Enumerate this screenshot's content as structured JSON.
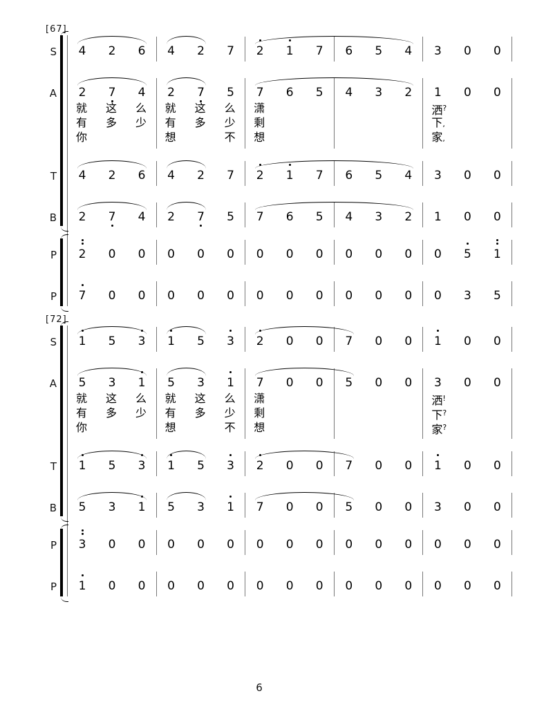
{
  "page_number": "6",
  "systems": [
    {
      "label": "[67]",
      "staves": [
        {
          "label": "S",
          "has_lyrics": false,
          "notes": [
            "4",
            "2",
            "6",
            "4",
            "2",
            "7",
            "2'",
            "1'",
            "7",
            "6",
            "5",
            "4",
            "3",
            "0",
            "0"
          ],
          "slurs": [
            [
              0,
              2
            ],
            [
              3,
              4
            ],
            [
              6,
              11
            ]
          ]
        },
        {
          "label": "A",
          "has_lyrics": true,
          "notes": [
            "2",
            "7,",
            "4",
            "2",
            "7,",
            "5",
            "7",
            "6",
            "5",
            "4",
            "3",
            "2",
            "1",
            "0",
            "0"
          ],
          "slurs": [
            [
              0,
              2
            ],
            [
              3,
              4
            ],
            [
              6,
              11
            ]
          ]
        },
        {
          "label": "T",
          "has_lyrics": false,
          "notes": [
            "4",
            "2",
            "6",
            "4",
            "2",
            "7",
            "2'",
            "1'",
            "7",
            "6",
            "5",
            "4",
            "3",
            "0",
            "0"
          ],
          "slurs": [
            [
              0,
              2
            ],
            [
              3,
              4
            ],
            [
              6,
              11
            ]
          ]
        },
        {
          "label": "B",
          "has_lyrics": false,
          "notes": [
            "2",
            "7,",
            "4",
            "2",
            "7,",
            "5",
            "7",
            "6",
            "5",
            "4",
            "3",
            "2",
            "1",
            "0",
            "0"
          ],
          "slurs": [
            [
              0,
              2
            ],
            [
              3,
              4
            ],
            [
              6,
              11
            ]
          ]
        },
        {
          "label": "P",
          "has_lyrics": false,
          "notes": [
            "2''",
            "0",
            "0",
            "0",
            "0",
            "0",
            "0",
            "0",
            "0",
            "0",
            "0",
            "0",
            "0",
            "5'",
            "1''"
          ],
          "slurs": []
        },
        {
          "label": "P",
          "has_lyrics": false,
          "notes": [
            "7'",
            "0",
            "0",
            "0",
            "0",
            "0",
            "0",
            "0",
            "0",
            "0",
            "0",
            "0",
            "0",
            "3",
            "5"
          ],
          "slurs": []
        }
      ],
      "lyric_lines": [
        [
          "就",
          "这",
          "么",
          "就",
          "这",
          "么",
          "潇",
          "",
          "",
          "",
          "",
          "",
          "洒?",
          "",
          ""
        ],
        [
          "有",
          "多",
          "少",
          "有",
          "多",
          "少",
          "剩",
          "",
          "",
          "",
          "",
          "",
          "下,",
          "",
          ""
        ],
        [
          "你",
          "",
          "",
          "想",
          "",
          "不",
          "想",
          "",
          "",
          "",
          "",
          "",
          "家,",
          "",
          ""
        ]
      ]
    },
    {
      "label": "[72]",
      "staves": [
        {
          "label": "S",
          "has_lyrics": false,
          "notes": [
            "1'",
            "5",
            "3'",
            "1'",
            "5",
            "3'",
            "2'",
            "0",
            "0",
            "7",
            "0",
            "0",
            "1'",
            "0",
            "0"
          ],
          "slurs": [
            [
              0,
              2
            ],
            [
              3,
              4
            ],
            [
              6,
              9
            ]
          ]
        },
        {
          "label": "A",
          "has_lyrics": true,
          "notes": [
            "5",
            "3",
            "1'",
            "5",
            "3",
            "1'",
            "7",
            "0",
            "0",
            "5",
            "0",
            "0",
            "3",
            "0",
            "0"
          ],
          "slurs": [
            [
              0,
              2
            ],
            [
              3,
              4
            ],
            [
              6,
              9
            ]
          ]
        },
        {
          "label": "T",
          "has_lyrics": false,
          "notes": [
            "1'",
            "5",
            "3'",
            "1'",
            "5",
            "3'",
            "2'",
            "0",
            "0",
            "7",
            "0",
            "0",
            "1'",
            "0",
            "0"
          ],
          "slurs": [
            [
              0,
              2
            ],
            [
              3,
              4
            ],
            [
              6,
              9
            ]
          ]
        },
        {
          "label": "B",
          "has_lyrics": false,
          "notes": [
            "5",
            "3",
            "1'",
            "5",
            "3",
            "1'",
            "7",
            "0",
            "0",
            "5",
            "0",
            "0",
            "3",
            "0",
            "0"
          ],
          "slurs": [
            [
              0,
              2
            ],
            [
              3,
              4
            ],
            [
              6,
              9
            ]
          ]
        },
        {
          "label": "P",
          "has_lyrics": false,
          "notes": [
            "3''",
            "0",
            "0",
            "0",
            "0",
            "0",
            "0",
            "0",
            "0",
            "0",
            "0",
            "0",
            "0",
            "0",
            "0"
          ],
          "slurs": []
        },
        {
          "label": "P",
          "has_lyrics": false,
          "notes": [
            "1'",
            "0",
            "0",
            "0",
            "0",
            "0",
            "0",
            "0",
            "0",
            "0",
            "0",
            "0",
            "0",
            "0",
            "0"
          ],
          "slurs": []
        }
      ],
      "lyric_lines": [
        [
          "就",
          "这",
          "么",
          "就",
          "这",
          "么",
          "潇",
          "",
          "",
          "",
          "",
          "",
          "洒!",
          "",
          ""
        ],
        [
          "有",
          "多",
          "少",
          "有",
          "多",
          "少",
          "剩",
          "",
          "",
          "",
          "",
          "",
          "下?",
          "",
          ""
        ],
        [
          "你",
          "",
          "",
          "想",
          "",
          "不",
          "想",
          "",
          "",
          "",
          "",
          "",
          "家?",
          "",
          ""
        ]
      ]
    }
  ]
}
